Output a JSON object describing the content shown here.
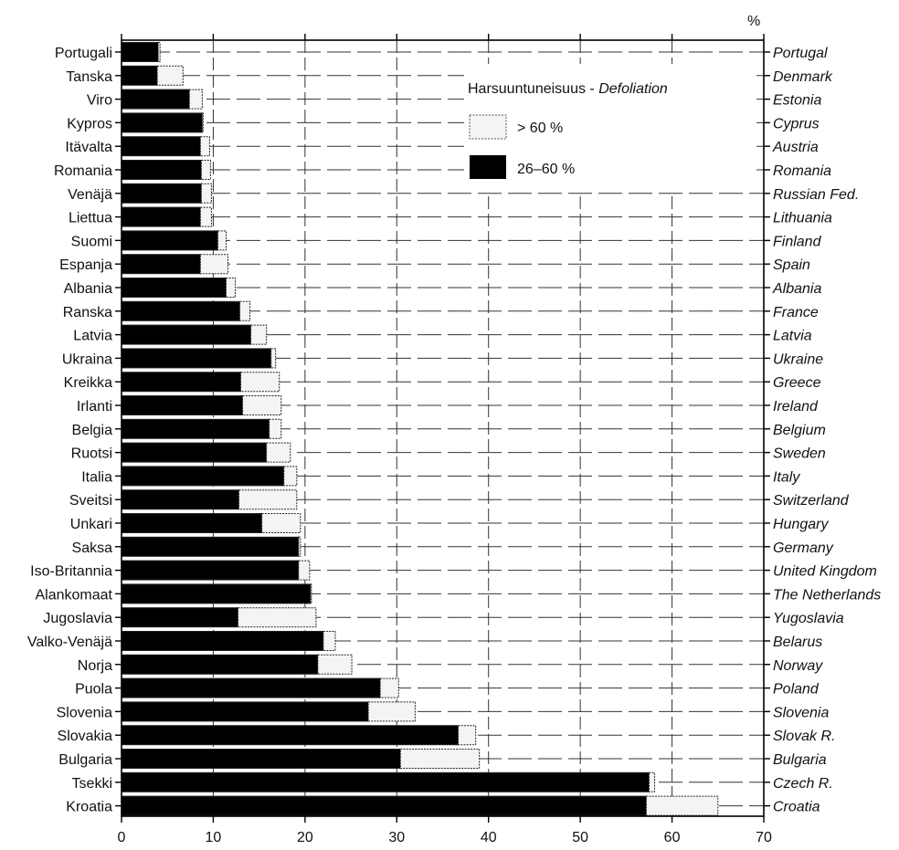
{
  "chart_data": {
    "type": "bar",
    "orientation": "horizontal",
    "stacked": true,
    "unit": "%",
    "legend": {
      "title": "Harsuuntuneisuus - ",
      "title_italic": "Defoliation",
      "position": "top-right"
    },
    "categories_fi": [
      "Portugali",
      "Tanska",
      "Viro",
      "Kypros",
      "Itävalta",
      "Romania",
      "Venäjä",
      "Liettua",
      "Suomi",
      "Espanja",
      "Albania",
      "Ranska",
      "Latvia",
      "Ukraina",
      "Kreikka",
      "Irlanti",
      "Belgia",
      "Ruotsi",
      "Italia",
      "Sveitsi",
      "Unkari",
      "Saksa",
      "Iso-Britannia",
      "Alankomaat",
      "Jugoslavia",
      "Valko-Venäjä",
      "Norja",
      "Puola",
      "Slovenia",
      "Slovakia",
      "Bulgaria",
      "Tsekki",
      "Kroatia"
    ],
    "categories_en": [
      "Portugal",
      "Denmark",
      "Estonia",
      "Cyprus",
      "Austria",
      "Romania",
      "Russian Fed.",
      "Lithuania",
      "Finland",
      "Spain",
      "Albania",
      "France",
      "Latvia",
      "Ukraine",
      "Greece",
      "Ireland",
      "Belgium",
      "Sweden",
      "Italy",
      "Switzerland",
      "Hungary",
      "Germany",
      "United Kingdom",
      "The Netherlands",
      "Yugoslavia",
      "Belarus",
      "Norway",
      "Poland",
      "Slovenia",
      "Slovak  R.",
      "Bulgaria",
      "Czech R.",
      "Croatia"
    ],
    "series": [
      {
        "name": "26–60 %",
        "color": "#000000",
        "values": [
          4.0,
          3.9,
          7.4,
          8.8,
          8.6,
          8.7,
          8.7,
          8.6,
          10.5,
          8.6,
          11.4,
          12.9,
          14.1,
          16.3,
          13.0,
          13.2,
          16.1,
          15.8,
          17.7,
          12.8,
          15.3,
          19.3,
          19.3,
          20.6,
          12.7,
          22.0,
          21.4,
          28.2,
          26.9,
          36.7,
          30.4,
          57.5,
          57.2
        ]
      },
      {
        "name": "> 60 %",
        "color": "#f4f4f4",
        "values": [
          0.2,
          2.8,
          1.4,
          0.1,
          1.0,
          1.0,
          1.1,
          1.2,
          0.9,
          3.0,
          1.0,
          1.1,
          1.7,
          0.5,
          4.2,
          4.2,
          1.3,
          2.6,
          1.4,
          6.3,
          4.2,
          0.2,
          1.2,
          0.1,
          8.5,
          1.3,
          3.7,
          2.0,
          5.1,
          1.9,
          8.6,
          0.6,
          7.8
        ]
      }
    ],
    "xlim": [
      0,
      70
    ],
    "xticks": [
      "0",
      "10",
      "20",
      "30",
      "40",
      "50",
      "60",
      "70"
    ],
    "grid": true
  }
}
